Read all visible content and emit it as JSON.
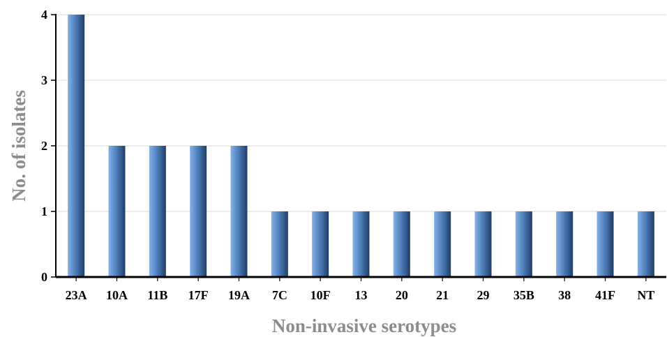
{
  "chart_data": {
    "type": "bar",
    "title": "",
    "xlabel": "Non-invasive serotypes",
    "ylabel": "No. of isolates",
    "categories": [
      "23A",
      "10A",
      "11B",
      "17F",
      "19A",
      "7C",
      "10F",
      "13",
      "20",
      "21",
      "29",
      "35B",
      "38",
      "41F",
      "NT"
    ],
    "values": [
      4,
      2,
      2,
      2,
      2,
      1,
      1,
      1,
      1,
      1,
      1,
      1,
      1,
      1,
      1
    ],
    "ylim": [
      0,
      4
    ],
    "yticks": [
      "0",
      "1",
      "2",
      "3",
      "4"
    ],
    "grid": true,
    "legend": "none",
    "colors": {
      "bar_light": "#7aa8e0",
      "bar_mid": "#4f81bd",
      "bar_dark": "#1f3d66",
      "grid": "#d9d9d9",
      "axis": "#000000",
      "label": "#8c8c8c"
    }
  }
}
